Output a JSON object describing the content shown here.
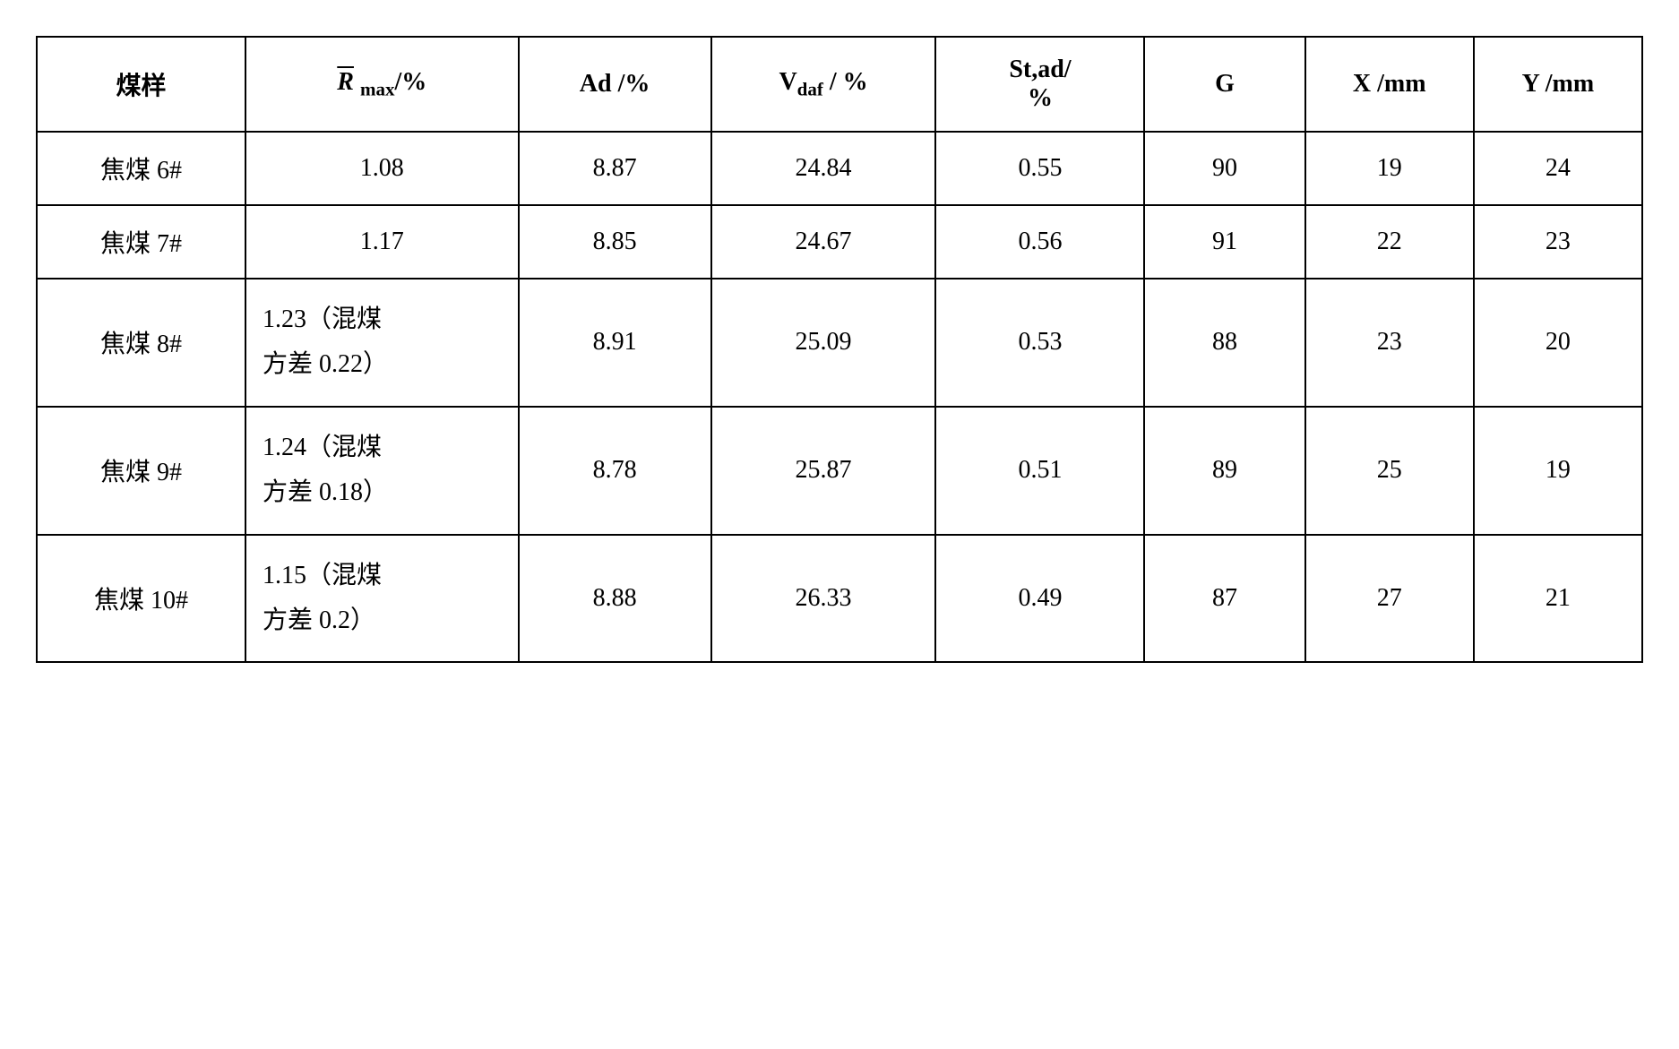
{
  "table": {
    "type": "table",
    "background_color": "#ffffff",
    "border_color": "#000000",
    "border_width": 2,
    "text_color": "#000000",
    "header_fontsize": 28,
    "cell_fontsize": 28,
    "columns": [
      {
        "key": "sample",
        "label": "煤样",
        "width_pct": 13
      },
      {
        "key": "rmax",
        "label_prefix": "R",
        "label_sub": "max",
        "label_suffix": "/%",
        "has_overline": true,
        "width_pct": 17
      },
      {
        "key": "ad",
        "label": "Ad /%",
        "width_pct": 12
      },
      {
        "key": "vdaf",
        "label_prefix": "V",
        "label_sub": "daf",
        "label_suffix": " / %",
        "width_pct": 14
      },
      {
        "key": "stad",
        "label_line1": "St,ad/",
        "label_line2": "%",
        "width_pct": 13
      },
      {
        "key": "g",
        "label": "G",
        "width_pct": 10
      },
      {
        "key": "x",
        "label": "X /mm",
        "width_pct": 10.5
      },
      {
        "key": "y",
        "label": "Y /mm",
        "width_pct": 10.5
      }
    ],
    "rows": [
      {
        "sample": "焦煤 6#",
        "rmax": "1.08",
        "ad": "8.87",
        "vdaf": "24.84",
        "stad": "0.55",
        "g": "90",
        "x": "19",
        "y": "24",
        "rmax_multiline": false
      },
      {
        "sample": "焦煤 7#",
        "rmax": "1.17",
        "ad": "8.85",
        "vdaf": "24.67",
        "stad": "0.56",
        "g": "91",
        "x": "22",
        "y": "23",
        "rmax_multiline": false
      },
      {
        "sample": "焦煤 8#",
        "rmax_line1": "1.23（混煤",
        "rmax_line2": "方差 0.22）",
        "ad": "8.91",
        "vdaf": "25.09",
        "stad": "0.53",
        "g": "88",
        "x": "23",
        "y": "20",
        "rmax_multiline": true
      },
      {
        "sample": "焦煤 9#",
        "rmax_line1": "1.24（混煤",
        "rmax_line2": "方差 0.18）",
        "ad": "8.78",
        "vdaf": "25.87",
        "stad": "0.51",
        "g": "89",
        "x": "25",
        "y": "19",
        "rmax_multiline": true
      },
      {
        "sample": "焦煤 10#",
        "rmax_line1": "1.15（混煤",
        "rmax_line2": "方差 0.2）",
        "ad": "8.88",
        "vdaf": "26.33",
        "stad": "0.49",
        "g": "87",
        "x": "27",
        "y": "21",
        "rmax_multiline": true
      }
    ]
  }
}
